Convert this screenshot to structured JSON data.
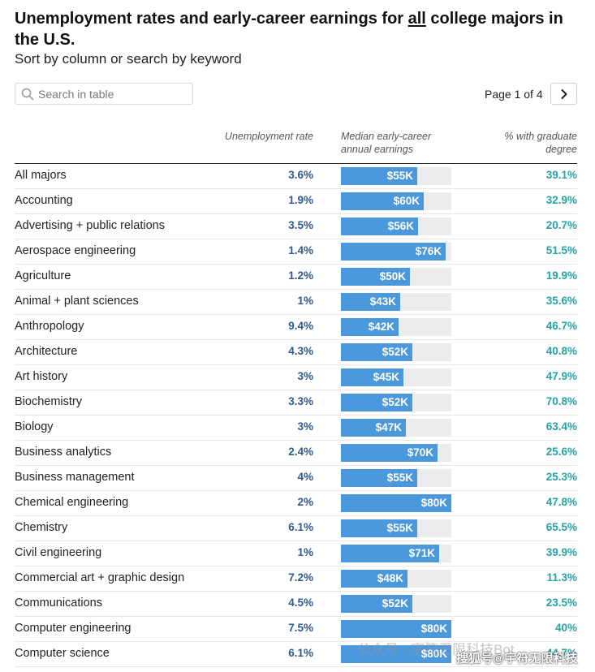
{
  "header": {
    "title_before": "Unemployment rates and early-career earnings for ",
    "title_emphasis": "all",
    "title_after": " college majors in the U.S.",
    "subtitle": "Sort by column or search by keyword"
  },
  "search": {
    "placeholder": "Search in table",
    "value": ""
  },
  "pagination": {
    "text": "Page 1 of 4",
    "next_icon": "chevron-right-icon"
  },
  "columns": {
    "unemployment": "Unemployment rate",
    "earnings": "Median early-career annual earnings",
    "graduate": "% with graduate degree"
  },
  "colors": {
    "unemployment_text": "#2f5a8f",
    "bar_fill": "#4c98dd",
    "bar_track": "#ececec",
    "graduate_text": "#27a3a3"
  },
  "earnings_scale_max": 80,
  "rows": [
    {
      "major": "All majors",
      "unemployment": "3.6%",
      "earnings_k": 55,
      "earnings": "$55K",
      "graduate": "39.1%"
    },
    {
      "major": "Accounting",
      "unemployment": "1.9%",
      "earnings_k": 60,
      "earnings": "$60K",
      "graduate": "32.9%"
    },
    {
      "major": "Advertising + public relations",
      "unemployment": "3.5%",
      "earnings_k": 56,
      "earnings": "$56K",
      "graduate": "20.7%"
    },
    {
      "major": "Aerospace engineering",
      "unemployment": "1.4%",
      "earnings_k": 76,
      "earnings": "$76K",
      "graduate": "51.5%"
    },
    {
      "major": "Agriculture",
      "unemployment": "1.2%",
      "earnings_k": 50,
      "earnings": "$50K",
      "graduate": "19.9%"
    },
    {
      "major": "Animal + plant sciences",
      "unemployment": "1%",
      "earnings_k": 43,
      "earnings": "$43K",
      "graduate": "35.6%"
    },
    {
      "major": "Anthropology",
      "unemployment": "9.4%",
      "earnings_k": 42,
      "earnings": "$42K",
      "graduate": "46.7%"
    },
    {
      "major": "Architecture",
      "unemployment": "4.3%",
      "earnings_k": 52,
      "earnings": "$52K",
      "graduate": "40.8%"
    },
    {
      "major": "Art history",
      "unemployment": "3%",
      "earnings_k": 45,
      "earnings": "$45K",
      "graduate": "47.9%"
    },
    {
      "major": "Biochemistry",
      "unemployment": "3.3%",
      "earnings_k": 52,
      "earnings": "$52K",
      "graduate": "70.8%"
    },
    {
      "major": "Biology",
      "unemployment": "3%",
      "earnings_k": 47,
      "earnings": "$47K",
      "graduate": "63.4%"
    },
    {
      "major": "Business analytics",
      "unemployment": "2.4%",
      "earnings_k": 70,
      "earnings": "$70K",
      "graduate": "25.6%"
    },
    {
      "major": "Business management",
      "unemployment": "4%",
      "earnings_k": 55,
      "earnings": "$55K",
      "graduate": "25.3%"
    },
    {
      "major": "Chemical engineering",
      "unemployment": "2%",
      "earnings_k": 80,
      "earnings": "$80K",
      "graduate": "47.8%"
    },
    {
      "major": "Chemistry",
      "unemployment": "6.1%",
      "earnings_k": 55,
      "earnings": "$55K",
      "graduate": "65.5%"
    },
    {
      "major": "Civil engineering",
      "unemployment": "1%",
      "earnings_k": 71,
      "earnings": "$71K",
      "graduate": "39.9%"
    },
    {
      "major": "Commercial art + graphic design",
      "unemployment": "7.2%",
      "earnings_k": 48,
      "earnings": "$48K",
      "graduate": "11.3%"
    },
    {
      "major": "Communications",
      "unemployment": "4.5%",
      "earnings_k": 52,
      "earnings": "$52K",
      "graduate": "23.5%"
    },
    {
      "major": "Computer engineering",
      "unemployment": "7.5%",
      "earnings_k": 80,
      "earnings": "$80K",
      "graduate": "40%"
    },
    {
      "major": "Computer science",
      "unemployment": "6.1%",
      "earnings_k": 80,
      "earnings": "$80K",
      "graduate": "44.7%"
    }
  ],
  "watermark": {
    "text1": "公众号 · 宇符无限科技Bot",
    "text2": "搜狐号@宇符无限科技"
  }
}
